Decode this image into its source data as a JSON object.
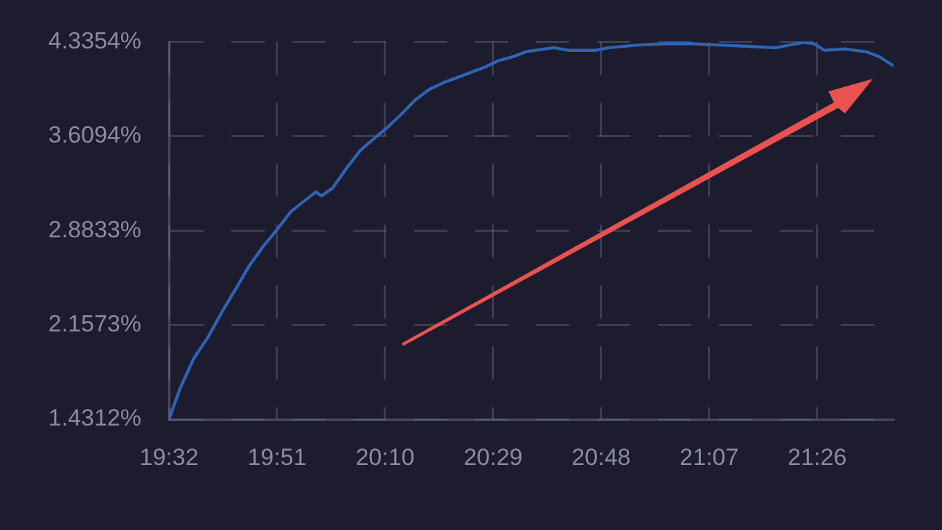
{
  "chart_data": {
    "type": "line",
    "x": [
      19.5333,
      19.566,
      19.606,
      19.647,
      19.687,
      19.728,
      19.768,
      19.809,
      19.85,
      19.891,
      19.939,
      19.964,
      19.98,
      20.013,
      20.053,
      20.094,
      20.134,
      20.175,
      20.215,
      20.256,
      20.297,
      20.337,
      20.378,
      20.418,
      20.459,
      20.499,
      20.54,
      20.581,
      20.662,
      20.703,
      20.784,
      20.824,
      20.906,
      20.987,
      21.068,
      21.149,
      21.23,
      21.312,
      21.352,
      21.393,
      21.425,
      21.454,
      21.515,
      21.576,
      21.616,
      21.657
    ],
    "series": [
      {
        "color": "#2f63b3",
        "values": [
          1.4312,
          1.67,
          1.9,
          2.06,
          2.25,
          2.43,
          2.61,
          2.76,
          2.89,
          3.03,
          3.13,
          3.18,
          3.15,
          3.21,
          3.36,
          3.5,
          3.59,
          3.68,
          3.78,
          3.89,
          3.97,
          4.02,
          4.06,
          4.1,
          4.14,
          4.19,
          4.22,
          4.26,
          4.29,
          4.27,
          4.27,
          4.29,
          4.31,
          4.32,
          4.32,
          4.31,
          4.3,
          4.29,
          4.31,
          4.33,
          4.32,
          4.27,
          4.28,
          4.26,
          4.22,
          4.15
        ]
      }
    ],
    "xlim": [
      19.5333,
      21.657
    ],
    "xticks": [
      {
        "value": 19.5333,
        "label": "19:32"
      },
      {
        "value": 19.85,
        "label": "19:51"
      },
      {
        "value": 20.1667,
        "label": "20:10"
      },
      {
        "value": 20.4833,
        "label": "20:29"
      },
      {
        "value": 20.8,
        "label": "20:48"
      },
      {
        "value": 21.1167,
        "label": "21:07"
      },
      {
        "value": 21.4333,
        "label": "21:26"
      }
    ],
    "ylim": [
      1.4312,
      4.3354
    ],
    "yticks": [
      {
        "value": 1.4312,
        "label": "1.4312%"
      },
      {
        "value": 2.1573,
        "label": "2.1573%"
      },
      {
        "value": 2.8833,
        "label": "2.8833%"
      },
      {
        "value": 3.6094,
        "label": "3.6094%"
      },
      {
        "value": 4.3354,
        "label": "4.3354%"
      }
    ],
    "grid": true
  }
}
